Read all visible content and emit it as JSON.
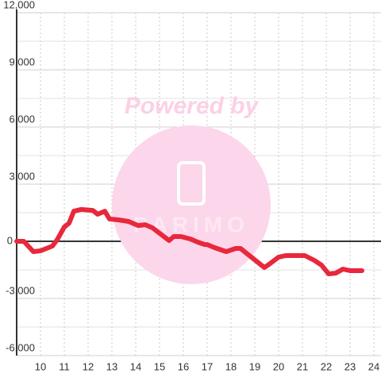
{
  "chart_data": {
    "type": "line",
    "watermark": "Powered by",
    "watermark_logo": "PARIMO",
    "x": [
      9.0,
      9.3,
      9.7,
      10.0,
      10.5,
      10.7,
      11.0,
      11.2,
      11.4,
      11.7,
      12.2,
      12.4,
      12.7,
      12.9,
      13.3,
      13.7,
      14.1,
      14.4,
      14.7,
      15.1,
      15.4,
      15.6,
      15.9,
      16.3,
      16.6,
      16.9,
      17.0,
      17.3,
      17.8,
      18.2,
      18.4,
      18.9,
      19.4,
      19.6,
      20.0,
      20.3,
      21.1,
      21.5,
      21.8,
      22.1,
      22.4,
      22.7,
      23.0,
      23.5
    ],
    "series": [
      {
        "color": "#e8283c",
        "values": [
          0,
          0,
          -540,
          -500,
          -250,
          80,
          750,
          950,
          1580,
          1670,
          1620,
          1420,
          1580,
          1170,
          1120,
          1040,
          830,
          870,
          710,
          330,
          40,
          250,
          250,
          120,
          -40,
          -170,
          -170,
          -330,
          -540,
          -375,
          -375,
          -875,
          -1375,
          -1210,
          -830,
          -750,
          -750,
          -1000,
          -1250,
          -1710,
          -1670,
          -1460,
          -1540,
          -1540
        ]
      }
    ],
    "xlim": [
      9,
      24.3
    ],
    "xticks": [
      10,
      11,
      12,
      13,
      14,
      15,
      16,
      17,
      18,
      19,
      20,
      21,
      22,
      23,
      24
    ],
    "ylim": [
      -6000,
      12000
    ],
    "yticks": [
      {
        "value": -6000,
        "label": "-6,000"
      },
      {
        "value": -3000,
        "label": "-3,000"
      },
      0,
      {
        "value": 3000,
        "label": "3,000"
      },
      {
        "value": 6000,
        "label": "6,000"
      },
      {
        "value": 9000,
        "label": "9,000"
      },
      {
        "value": 12000,
        "label": "12,000"
      }
    ],
    "y_minor_ticks": [
      -4500,
      -1500,
      1500,
      4500,
      7500,
      10500
    ],
    "grid": true
  }
}
